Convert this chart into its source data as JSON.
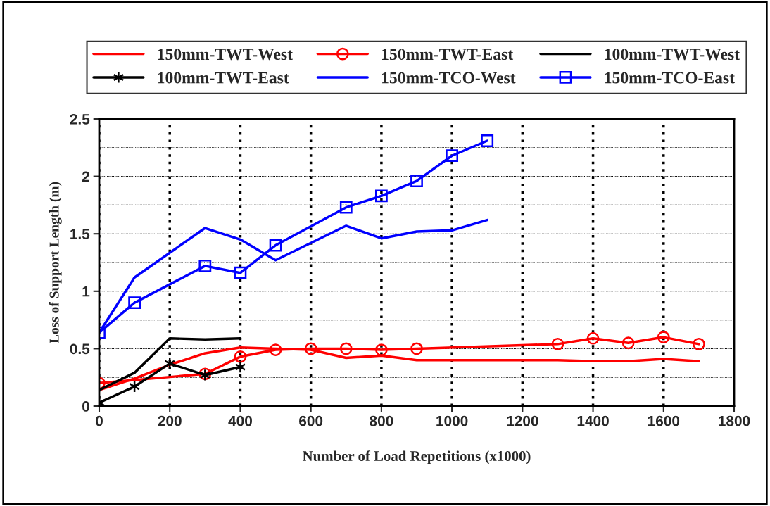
{
  "chart_data": {
    "type": "line",
    "xlabel": "Number of Load Repetitions (x1000)",
    "ylabel": "Loss of Support Length (m)",
    "xlim": [
      0,
      1800
    ],
    "xticks": [
      0,
      200,
      400,
      600,
      800,
      1000,
      1200,
      1400,
      1600,
      1800
    ],
    "ylim": [
      0,
      2.5
    ],
    "yticks": [
      0,
      {
        "value": 0.25,
        "label": null
      },
      0.5,
      {
        "value": 0.75,
        "label": null
      },
      1,
      {
        "value": 1.25,
        "label": null
      },
      1.5,
      {
        "value": 1.75,
        "label": null
      },
      2,
      {
        "value": 2.25,
        "label": null
      },
      2.5
    ],
    "grid": true,
    "legend": "top",
    "series": [
      {
        "name": "150mm-TWT-West",
        "color": "#ff0000",
        "marker": "none",
        "x": [
          0,
          100,
          200,
          300,
          400,
          500,
          600,
          700,
          800,
          900,
          1000,
          1100,
          1200,
          1300,
          1400,
          1500,
          1600,
          1700
        ],
        "values": [
          0.14,
          0.24,
          0.36,
          0.46,
          0.51,
          0.5,
          0.49,
          0.42,
          0.44,
          0.4,
          0.4,
          0.4,
          0.4,
          0.4,
          0.39,
          0.39,
          0.41,
          0.39
        ]
      },
      {
        "name": "150mm-TWT-East",
        "color": "#ff0000",
        "marker": "circle",
        "x": [
          0,
          300,
          400,
          500,
          600,
          700,
          800,
          900,
          1300,
          1400,
          1500,
          1600,
          1700
        ],
        "values": [
          0.2,
          0.28,
          0.43,
          0.49,
          0.5,
          0.5,
          0.49,
          0.5,
          0.54,
          0.59,
          0.55,
          0.6,
          0.54
        ]
      },
      {
        "name": "100mm-TWT-West",
        "color": "#000000",
        "marker": "none",
        "x": [
          0,
          100,
          200,
          300,
          400
        ],
        "values": [
          0.14,
          0.29,
          0.59,
          0.58,
          0.59
        ]
      },
      {
        "name": "100mm-TWT-East",
        "color": "#000000",
        "marker": "cross",
        "x": [
          0,
          100,
          200,
          300,
          400
        ],
        "values": [
          0.03,
          0.17,
          0.37,
          0.27,
          0.34
        ]
      },
      {
        "name": "150mm-TCO-West",
        "color": "#0000ff",
        "marker": "none",
        "x": [
          0,
          100,
          300,
          400,
          500,
          700,
          800,
          900,
          1000,
          1100
        ],
        "values": [
          0.64,
          1.12,
          1.55,
          1.45,
          1.27,
          1.57,
          1.46,
          1.52,
          1.53,
          1.62
        ]
      },
      {
        "name": "150mm-TCO-East",
        "color": "#0000ff",
        "marker": "square",
        "x": [
          0,
          100,
          300,
          400,
          500,
          700,
          800,
          900,
          1000,
          1100
        ],
        "values": [
          0.64,
          0.9,
          1.22,
          1.16,
          1.4,
          1.73,
          1.83,
          1.96,
          2.18,
          2.31
        ]
      }
    ]
  }
}
